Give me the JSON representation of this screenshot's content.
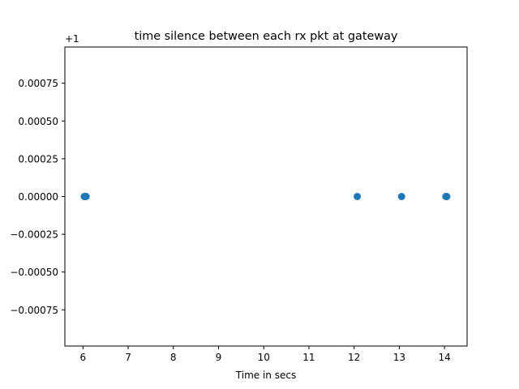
{
  "chart_data": {
    "type": "scatter",
    "title": "time silence between each rx pkt at gateway",
    "xlabel": "Time in secs",
    "ylabel": "",
    "y_offset_label": "+1",
    "xlim": [
      5.6,
      14.5
    ],
    "ylim": [
      -0.00099,
      0.00099
    ],
    "x_ticks": [
      6,
      7,
      8,
      9,
      10,
      11,
      12,
      13,
      14
    ],
    "y_ticks": [
      {
        "value": 0.00075,
        "label": "0.00075"
      },
      {
        "value": 0.0005,
        "label": "0.00050"
      },
      {
        "value": 0.00025,
        "label": "0.00025"
      },
      {
        "value": 0.0,
        "label": "0.00000"
      },
      {
        "value": -0.00025,
        "label": "−0.00025"
      },
      {
        "value": -0.0005,
        "label": "−0.00050"
      },
      {
        "value": -0.00075,
        "label": "−0.00075"
      }
    ],
    "grid": false,
    "marker_color": "#1f77b4",
    "series": [
      {
        "points": [
          {
            "x": 6.03,
            "y": 0.0
          },
          {
            "x": 6.05,
            "y": 0.0
          },
          {
            "x": 6.07,
            "y": 0.0
          },
          {
            "x": 12.07,
            "y": 0.0
          },
          {
            "x": 13.05,
            "y": 0.0
          },
          {
            "x": 14.03,
            "y": 0.0
          },
          {
            "x": 14.05,
            "y": 0.0
          }
        ]
      }
    ]
  }
}
